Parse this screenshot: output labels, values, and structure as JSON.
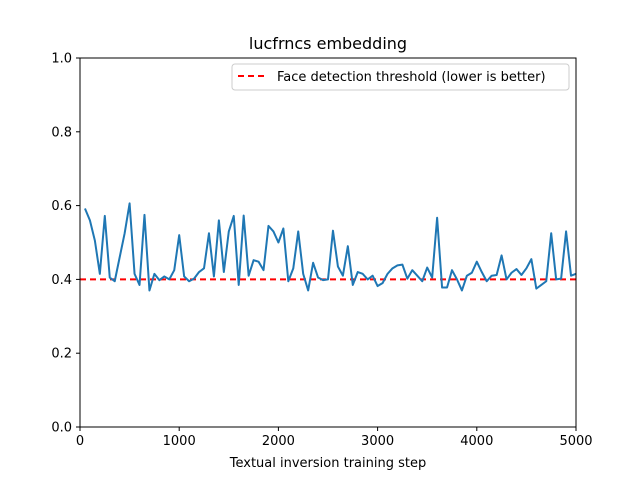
{
  "chart_data": {
    "type": "line",
    "title": "lucfrncs embedding",
    "xlabel": "Textual inversion training step",
    "ylabel": "",
    "xlim": [
      0,
      5000
    ],
    "ylim": [
      0,
      1.0
    ],
    "xticks": [
      "0",
      "1000",
      "2000",
      "3000",
      "4000",
      "5000"
    ],
    "yticks": [
      "0.0",
      "0.2",
      "0.4",
      "0.6",
      "0.8",
      "1.0"
    ],
    "grid": false,
    "legend_position": "top-right",
    "series": [
      {
        "color": "#1f77b4",
        "x": [
          50,
          100,
          150,
          200,
          250,
          300,
          350,
          400,
          450,
          500,
          550,
          600,
          650,
          700,
          750,
          800,
          850,
          900,
          950,
          1000,
          1050,
          1100,
          1150,
          1200,
          1250,
          1300,
          1350,
          1400,
          1450,
          1500,
          1550,
          1600,
          1650,
          1700,
          1750,
          1800,
          1850,
          1900,
          1950,
          2000,
          2050,
          2100,
          2150,
          2200,
          2250,
          2300,
          2350,
          2400,
          2450,
          2500,
          2550,
          2600,
          2650,
          2700,
          2750,
          2800,
          2850,
          2900,
          2950,
          3000,
          3050,
          3100,
          3150,
          3200,
          3250,
          3300,
          3350,
          3400,
          3450,
          3500,
          3550,
          3600,
          3650,
          3700,
          3750,
          3800,
          3850,
          3900,
          3950,
          4000,
          4050,
          4100,
          4150,
          4200,
          4250,
          4300,
          4350,
          4400,
          4450,
          4500,
          4550,
          4600,
          4650,
          4700,
          4750,
          4800,
          4850,
          4900,
          4950,
          5000
        ],
        "values": [
          0.592,
          0.56,
          0.505,
          0.415,
          0.572,
          0.405,
          0.395,
          0.46,
          0.525,
          0.606,
          0.415,
          0.385,
          0.575,
          0.37,
          0.415,
          0.398,
          0.408,
          0.4,
          0.425,
          0.52,
          0.408,
          0.395,
          0.402,
          0.42,
          0.43,
          0.525,
          0.408,
          0.56,
          0.42,
          0.53,
          0.572,
          0.385,
          0.573,
          0.41,
          0.452,
          0.448,
          0.425,
          0.545,
          0.53,
          0.5,
          0.538,
          0.395,
          0.43,
          0.53,
          0.415,
          0.37,
          0.445,
          0.405,
          0.398,
          0.4,
          0.532,
          0.435,
          0.41,
          0.49,
          0.385,
          0.42,
          0.415,
          0.4,
          0.41,
          0.382,
          0.39,
          0.415,
          0.43,
          0.438,
          0.44,
          0.402,
          0.425,
          0.41,
          0.395,
          0.432,
          0.405,
          0.567,
          0.378,
          0.378,
          0.425,
          0.4,
          0.37,
          0.41,
          0.418,
          0.448,
          0.42,
          0.395,
          0.41,
          0.412,
          0.465,
          0.4,
          0.418,
          0.428,
          0.412,
          0.43,
          0.455,
          0.375,
          0.385,
          0.395,
          0.525,
          0.4,
          0.402,
          0.53,
          0.41,
          0.415
        ]
      }
    ],
    "threshold": {
      "name": "Face detection threshold (lower is better)",
      "value": 0.4,
      "color": "#ff0000",
      "style": "dashed"
    }
  }
}
